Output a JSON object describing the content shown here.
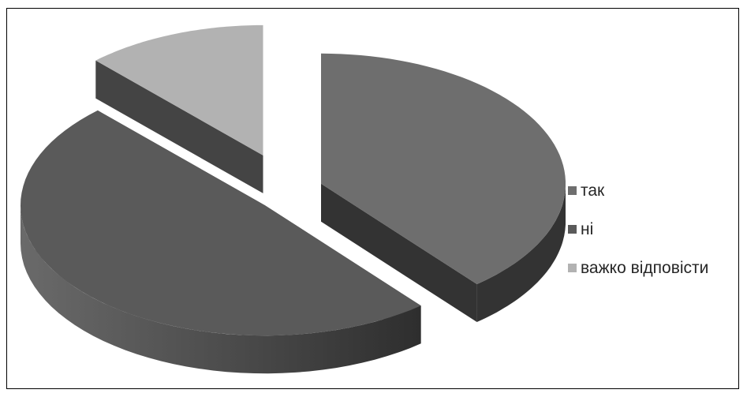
{
  "chart_data": {
    "type": "pie",
    "style": "3d-exploded",
    "categories": [
      "так",
      "ні",
      "важко відповісти"
    ],
    "values": [
      39,
      49,
      12
    ],
    "colors": [
      "#6e6e6e",
      "#5a5a5a",
      "#b2b2b2"
    ],
    "side_colors": [
      "#333333",
      "#3a3a3a",
      "#444444"
    ],
    "title": "",
    "legend_position": "right"
  }
}
